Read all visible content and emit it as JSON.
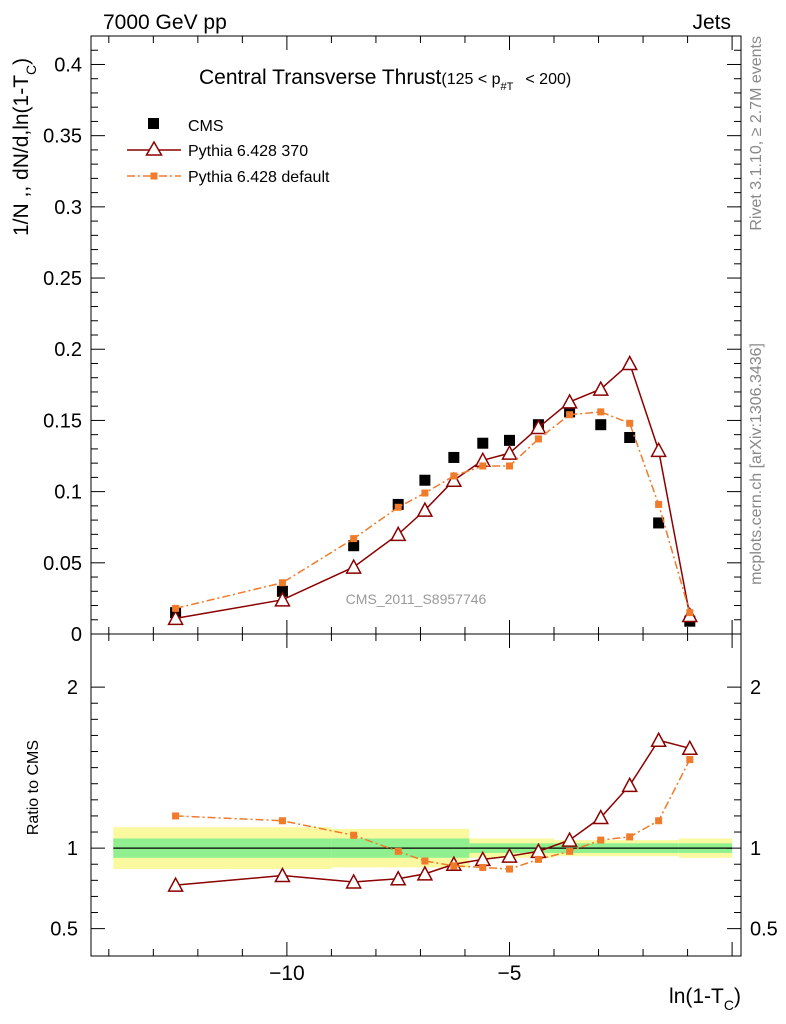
{
  "header": {
    "energy_label": "7000 GeV pp",
    "process_label": "Jets",
    "side_rivet": "Rivet 3.1.10, ≥ 2.7M events",
    "side_url": "mcplots.cern.ch [arXiv:1306.3436]",
    "watermark": "CMS_2011_S8957746"
  },
  "chart_data": [
    {
      "type": "scatter",
      "title": "Central Transverse Thrust",
      "title_cut": "(125 < p",
      "title_cut_sub": "#T",
      "title_cut_end": "< 200)",
      "ylabel": "1/N ,, dN/d,ln(1-T",
      "ylabel_sub": "C",
      "ylabel_end": ")",
      "xlim": [
        -14.4,
        0.2
      ],
      "ylim": [
        0,
        0.42
      ],
      "y_ticks": [
        "0",
        "0.05",
        "0.1",
        "0.15",
        "0.2",
        "0.25",
        "0.3",
        "0.35",
        "0.4"
      ],
      "y_tick_values": [
        0,
        0.05,
        0.1,
        0.15,
        0.2,
        0.25,
        0.3,
        0.35,
        0.4
      ],
      "legend_position": "top-left",
      "series": [
        {
          "name": "CMS",
          "style": "data",
          "color": "#000000",
          "x": [
            -12.5,
            -10.1,
            -8.5,
            -7.5,
            -6.9,
            -6.25,
            -5.6,
            -5.0,
            -4.35,
            -3.65,
            -2.95,
            -2.3,
            -1.65,
            -0.95
          ],
          "y": [
            0.015,
            0.03,
            0.062,
            0.091,
            0.108,
            0.124,
            0.134,
            0.136,
            0.147,
            0.156,
            0.147,
            0.138,
            0.078,
            0.009
          ]
        },
        {
          "name": "Pythia 6.428 370",
          "style": "triangle-line",
          "color": "#8b0000",
          "x": [
            -12.5,
            -10.1,
            -8.5,
            -7.5,
            -6.9,
            -6.25,
            -5.6,
            -5.0,
            -4.35,
            -3.65,
            -2.95,
            -2.3,
            -1.65,
            -0.95
          ],
          "y": [
            0.011,
            0.024,
            0.047,
            0.07,
            0.087,
            0.108,
            0.122,
            0.127,
            0.145,
            0.163,
            0.172,
            0.19,
            0.129,
            0.013
          ]
        },
        {
          "name": "Pythia 6.428 default",
          "style": "square-dashdot",
          "color": "#f07b2a",
          "x": [
            -12.5,
            -10.1,
            -8.5,
            -7.5,
            -6.9,
            -6.25,
            -5.6,
            -5.0,
            -4.35,
            -3.65,
            -2.95,
            -2.3,
            -1.65,
            -0.95
          ],
          "y": [
            0.018,
            0.036,
            0.067,
            0.089,
            0.099,
            0.111,
            0.118,
            0.118,
            0.137,
            0.154,
            0.156,
            0.148,
            0.091,
            0.015
          ]
        }
      ]
    },
    {
      "type": "line",
      "ylabel": "Ratio to CMS",
      "xlabel": "ln(1-T",
      "xlabel_sub": "C",
      "xlabel_end": ")",
      "xlim": [
        -14.4,
        0.2
      ],
      "ylim": [
        0.33,
        2.33
      ],
      "x_ticks": [
        "−10",
        "−5"
      ],
      "x_tick_values": [
        -10,
        -5
      ],
      "y_ticks": [
        "0.5",
        "1",
        "2"
      ],
      "y_tick_values": [
        0.5,
        1,
        2
      ],
      "uncertainty_bands": {
        "x_edges": [
          -13.9,
          -11.3,
          -9.0,
          -5.9,
          -4.0,
          -1.2,
          0.0
        ],
        "stat_half": [
          0.06,
          0.06,
          0.06,
          0.03,
          0.03,
          0.03,
          0.05
        ],
        "total_half": [
          0.13,
          0.13,
          0.12,
          0.06,
          0.05,
          0.06,
          0.08
        ],
        "stat_color": "#90f090",
        "total_color": "#fbf9a0"
      },
      "series": [
        {
          "name": "Pythia 6.428 370",
          "color": "#8b0000",
          "x": [
            -12.5,
            -10.1,
            -8.5,
            -7.5,
            -6.9,
            -6.25,
            -5.6,
            -5.0,
            -4.35,
            -3.65,
            -2.95,
            -2.3,
            -1.65,
            -0.95
          ],
          "y": [
            0.77,
            0.83,
            0.79,
            0.81,
            0.84,
            0.9,
            0.93,
            0.95,
            0.98,
            1.05,
            1.19,
            1.39,
            1.67,
            1.62
          ]
        },
        {
          "name": "Pythia 6.428 default",
          "color": "#f07b2a",
          "x": [
            -12.5,
            -10.1,
            -8.5,
            -7.5,
            -6.9,
            -6.25,
            -5.6,
            -5.0,
            -4.35,
            -3.65,
            -2.95,
            -2.3,
            -1.65,
            -0.95
          ],
          "y": [
            1.2,
            1.17,
            1.08,
            0.98,
            0.92,
            0.89,
            0.88,
            0.87,
            0.93,
            0.98,
            1.05,
            1.07,
            1.17,
            1.55
          ]
        }
      ]
    }
  ]
}
